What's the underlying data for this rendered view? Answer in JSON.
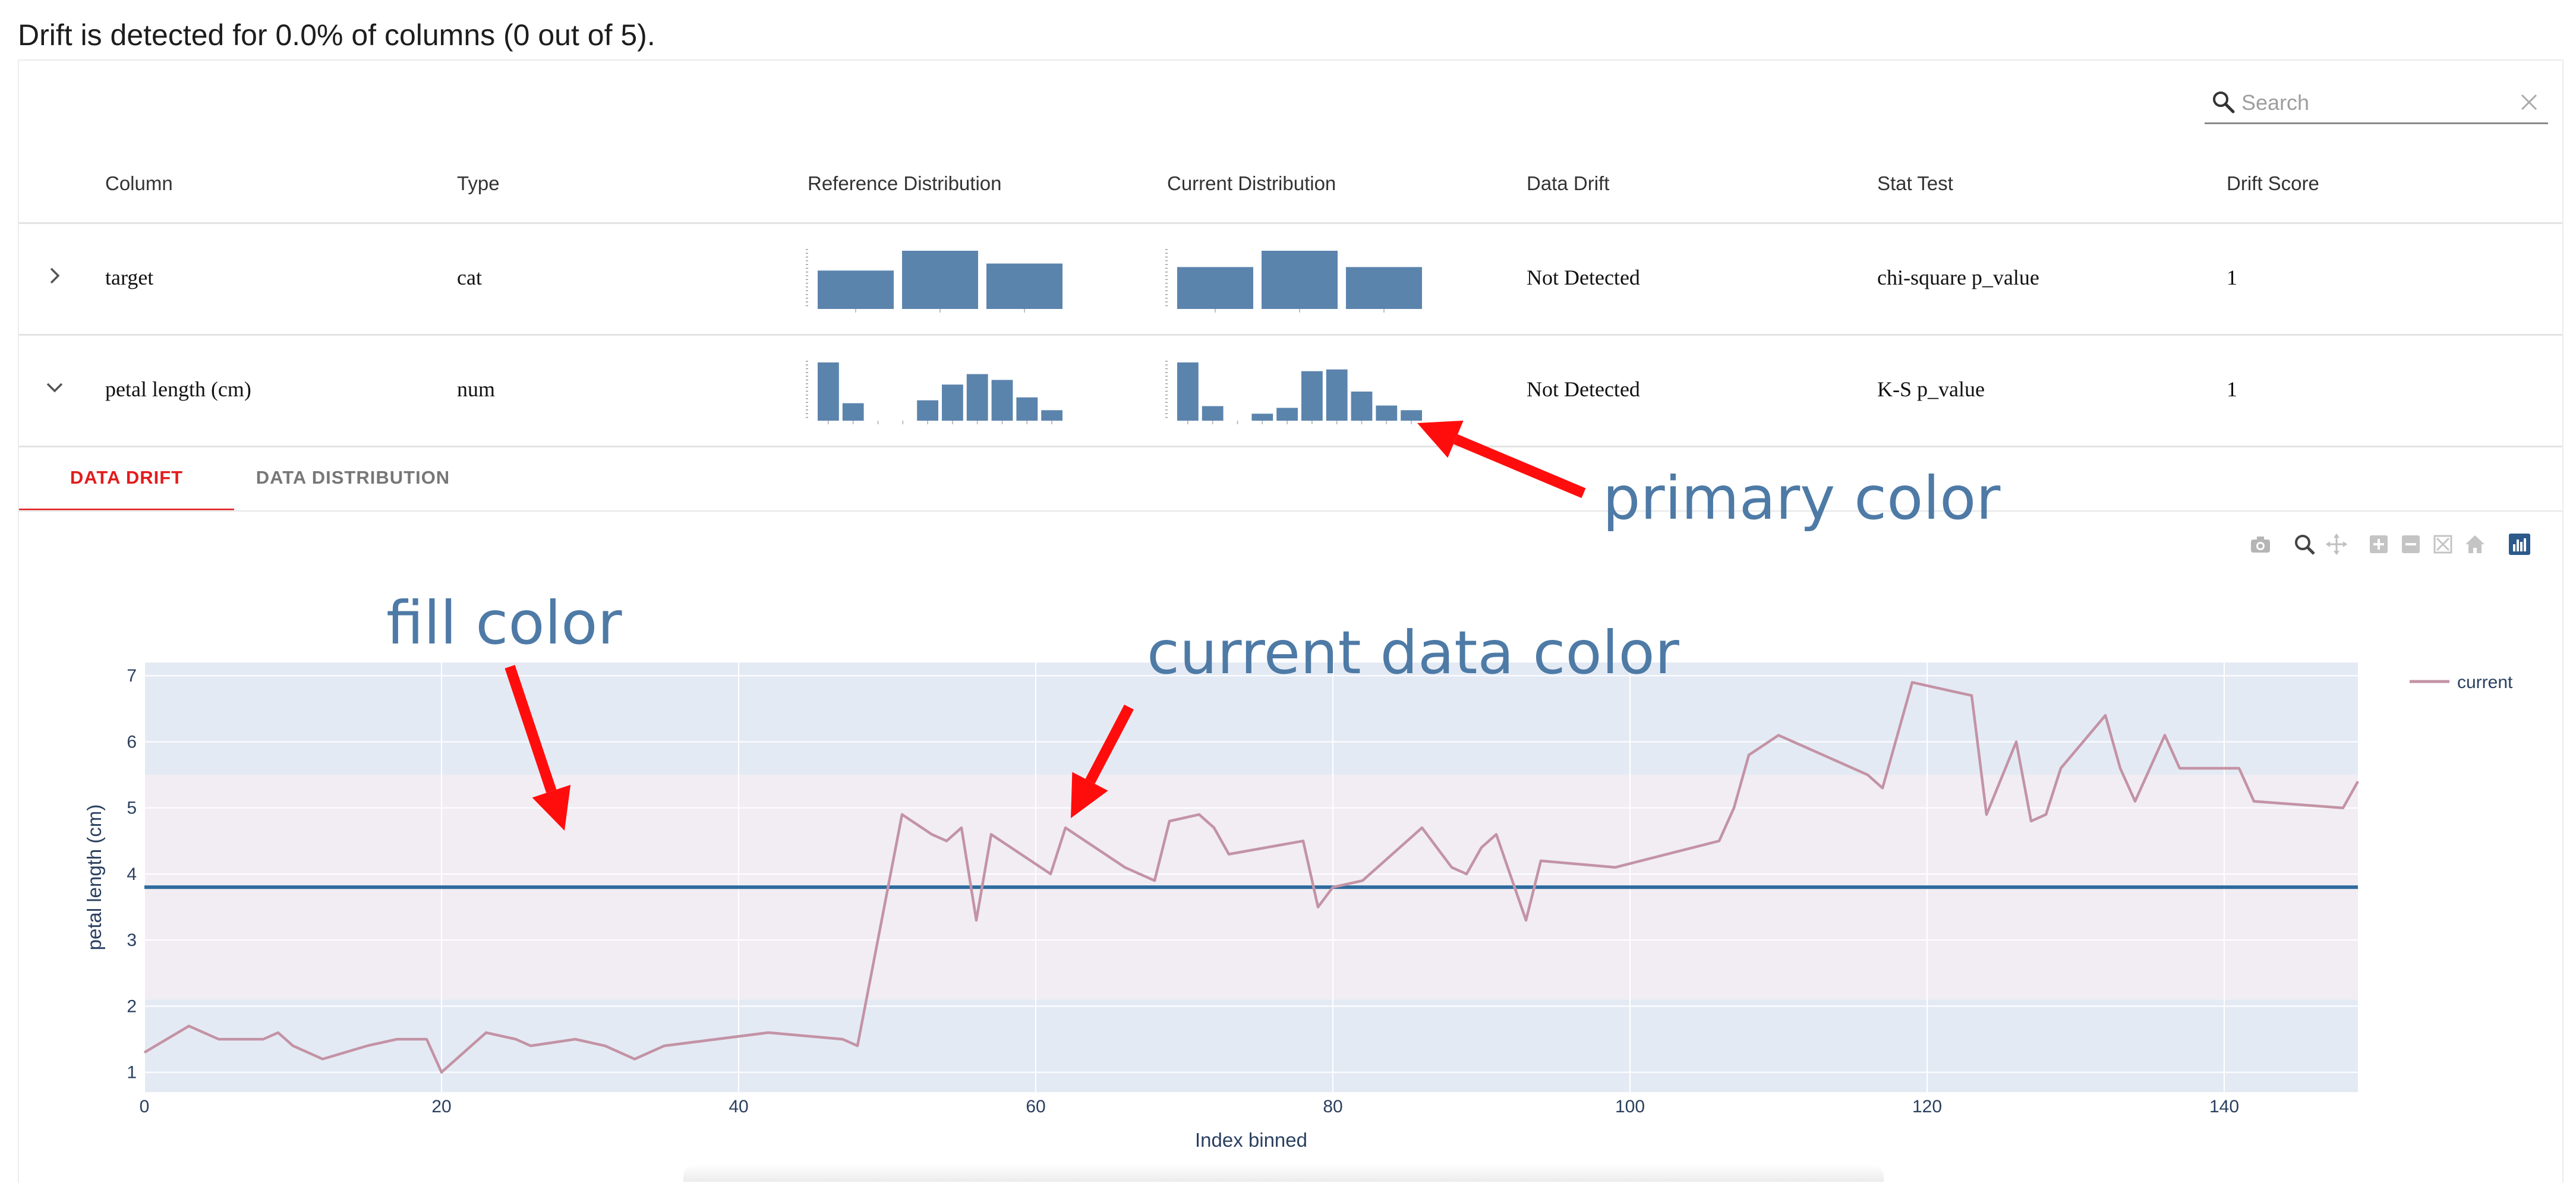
{
  "summary": "Drift is detected for 0.0% of columns (0 out of 5).",
  "search": {
    "placeholder": "Search",
    "value": ""
  },
  "table": {
    "headers": [
      "Column",
      "Type",
      "Reference Distribution",
      "Current Distribution",
      "Data Drift",
      "Stat Test",
      "Drift Score"
    ],
    "rows": [
      {
        "column": "target",
        "type": "cat",
        "data_drift": "Not Detected",
        "stat_test": "chi-square p_value",
        "drift_score": "1",
        "expanded": false,
        "reference_hist": [
          0.66,
          1.0,
          0.78
        ],
        "current_hist": [
          0.72,
          1.0,
          0.72
        ]
      },
      {
        "column": "petal length (cm)",
        "type": "num",
        "data_drift": "Not Detected",
        "stat_test": "K-S p_value",
        "drift_score": "1",
        "expanded": true,
        "reference_hist": [
          1.0,
          0.3,
          0,
          0,
          0.35,
          0.62,
          0.8,
          0.7,
          0.4,
          0.18
        ],
        "current_hist": [
          1.0,
          0.25,
          0,
          0.12,
          0.22,
          0.85,
          0.88,
          0.5,
          0.26,
          0.18
        ]
      }
    ]
  },
  "tabs": [
    {
      "label": "DATA DRIFT",
      "active": true
    },
    {
      "label": "DATA DISTRIBUTION",
      "active": false
    }
  ],
  "modebar_icons": [
    "camera-icon",
    "zoom-icon",
    "pan-icon",
    "zoom-in-icon",
    "zoom-out-icon",
    "autoscale-icon",
    "reset-axes-icon",
    "plotly-logo-icon"
  ],
  "colors": {
    "primary": "#5b84ad",
    "current_line": "#c393a5",
    "reference_line": "#2f6b9e",
    "band_outer": "#e4eaf4",
    "band_inner": "#f1edf3",
    "annotation_text": "#4e7aa6",
    "arrow": "#ff0d0d",
    "active_tab": "#e31b1b"
  },
  "annotations": [
    "primary color",
    "fill color",
    "current data color"
  ],
  "chart_data": {
    "type": "line",
    "xlabel": "Index binned",
    "ylabel": "petal length (cm)",
    "xlim": [
      0,
      149
    ],
    "ylim": [
      0.7,
      7.2
    ],
    "x_ticks": [
      0,
      20,
      40,
      60,
      80,
      100,
      120,
      140
    ],
    "y_ticks": [
      1,
      2,
      3,
      4,
      5,
      6,
      7
    ],
    "grid": true,
    "legend": {
      "entries": [
        "current"
      ],
      "position": "top-right"
    },
    "reference_mean": 3.8,
    "bands": [
      {
        "from": 5.5,
        "to": 7.2,
        "fill": "outer"
      },
      {
        "from": 2.1,
        "to": 5.5,
        "fill": "inner"
      },
      {
        "from": 0.7,
        "to": 2.1,
        "fill": "outer"
      }
    ],
    "series": [
      {
        "name": "current",
        "x": [
          0,
          3,
          5,
          8,
          9,
          10,
          12,
          15,
          17,
          19,
          20,
          23,
          25,
          26,
          29,
          31,
          33,
          35,
          42,
          47,
          48,
          51,
          53,
          54,
          55,
          56,
          57,
          61,
          62,
          66,
          68,
          69,
          71,
          72,
          73,
          78,
          79,
          80,
          82,
          86,
          88,
          89,
          90,
          91,
          93,
          94,
          99,
          106,
          107,
          108,
          110,
          113,
          116,
          117,
          119,
          123,
          124,
          126,
          127,
          128,
          129,
          132,
          133,
          134,
          136,
          137,
          141,
          142,
          148,
          149
        ],
        "y": [
          1.3,
          1.7,
          1.5,
          1.5,
          1.6,
          1.4,
          1.2,
          1.4,
          1.5,
          1.5,
          1.0,
          1.6,
          1.5,
          1.4,
          1.5,
          1.4,
          1.2,
          1.4,
          1.6,
          1.5,
          1.4,
          4.9,
          4.6,
          4.5,
          4.7,
          3.3,
          4.6,
          4.0,
          4.7,
          4.1,
          3.9,
          4.8,
          4.9,
          4.7,
          4.3,
          4.5,
          3.5,
          3.8,
          3.9,
          4.7,
          4.1,
          4.0,
          4.4,
          4.6,
          3.3,
          4.2,
          4.1,
          4.5,
          5.0,
          5.8,
          6.1,
          5.8,
          5.5,
          5.3,
          6.9,
          6.7,
          4.9,
          6.0,
          4.8,
          4.9,
          5.6,
          6.4,
          5.6,
          5.1,
          6.1,
          5.6,
          5.6,
          5.1,
          5.0,
          5.4
        ]
      }
    ]
  }
}
